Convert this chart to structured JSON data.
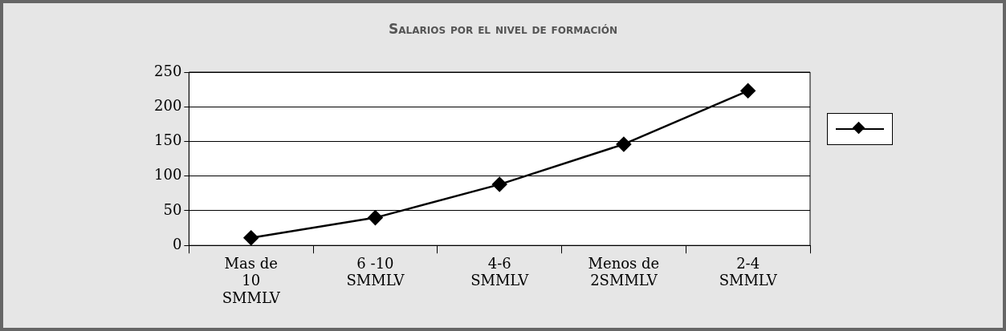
{
  "chart_data": {
    "type": "line",
    "title": "Salarios por el nivel de formación",
    "categories": [
      "Mas de\n10\nSMMLV",
      "6 -10\nSMMLV",
      "4-6\nSMMLV",
      "Menos de\n2SMMLV",
      "2-4\nSMMLV"
    ],
    "series": [
      {
        "color": "#000000",
        "values": [
          11,
          40,
          88,
          146,
          223
        ]
      }
    ],
    "ylim": [
      0,
      250
    ],
    "yticks": [
      0,
      50,
      100,
      150,
      200,
      250
    ],
    "grid": "y",
    "marker": "diamond",
    "line_style": "solid"
  }
}
